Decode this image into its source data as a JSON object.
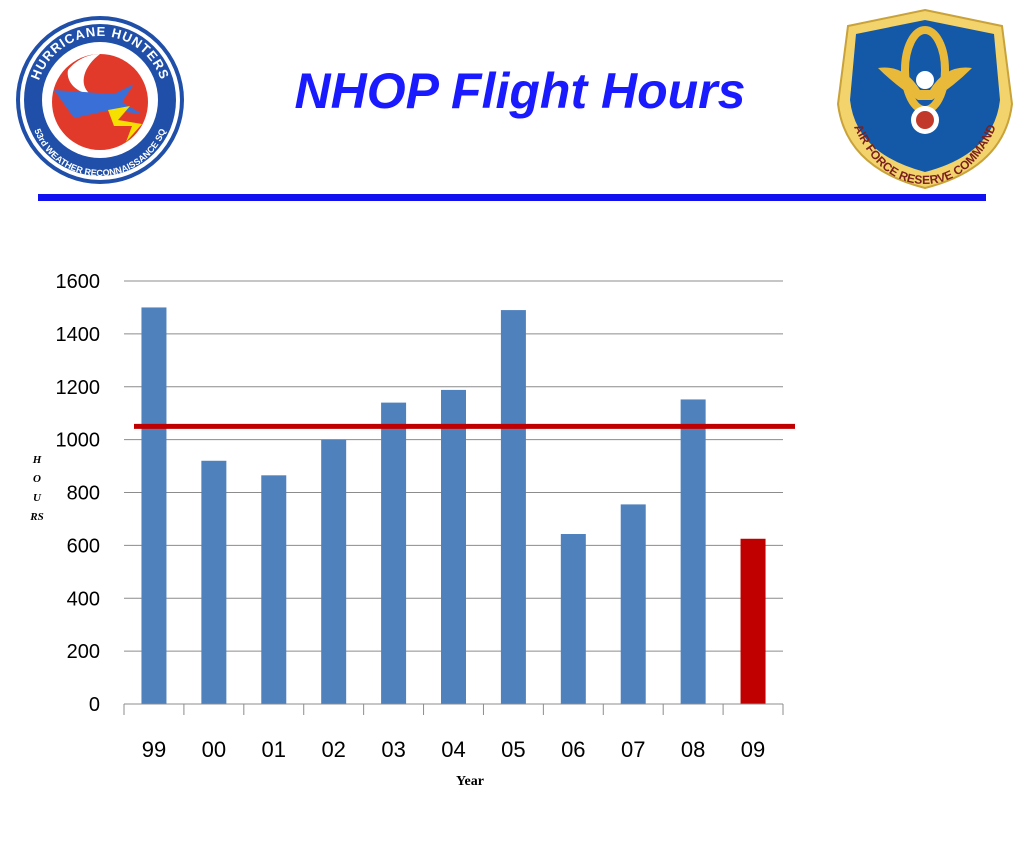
{
  "slide": {
    "title": "NHOP Flight Hours",
    "accent_color": "#1010f0"
  },
  "logos": {
    "left": {
      "icon": "hurricane-hunters-patch",
      "text_top": "HURRICANE HUNTERS",
      "text_bottom": "53rd WEATHER RECONNAISSANCE SQ"
    },
    "right": {
      "icon": "air-force-reserve-command-shield",
      "text": "AIR FORCE RESERVE COMMAND"
    }
  },
  "chart_data": {
    "type": "bar",
    "categories": [
      "99",
      "00",
      "01",
      "02",
      "03",
      "04",
      "05",
      "06",
      "07",
      "08",
      "09"
    ],
    "values": [
      1500,
      920,
      865,
      1000,
      1140,
      1188,
      1490,
      643,
      755,
      1152,
      625
    ],
    "bar_colors": [
      "#4f81bd",
      "#4f81bd",
      "#4f81bd",
      "#4f81bd",
      "#4f81bd",
      "#4f81bd",
      "#4f81bd",
      "#4f81bd",
      "#4f81bd",
      "#4f81bd",
      "#c00000"
    ],
    "reference_line": {
      "value": 1050,
      "color": "#c00000"
    },
    "xlabel": "Year",
    "ylabel": "HOURS",
    "ylim": [
      0,
      1600
    ],
    "yticks": [
      "0",
      "200",
      "400",
      "600",
      "800",
      "1000",
      "1200",
      "1400",
      "1600"
    ],
    "grid": true
  }
}
